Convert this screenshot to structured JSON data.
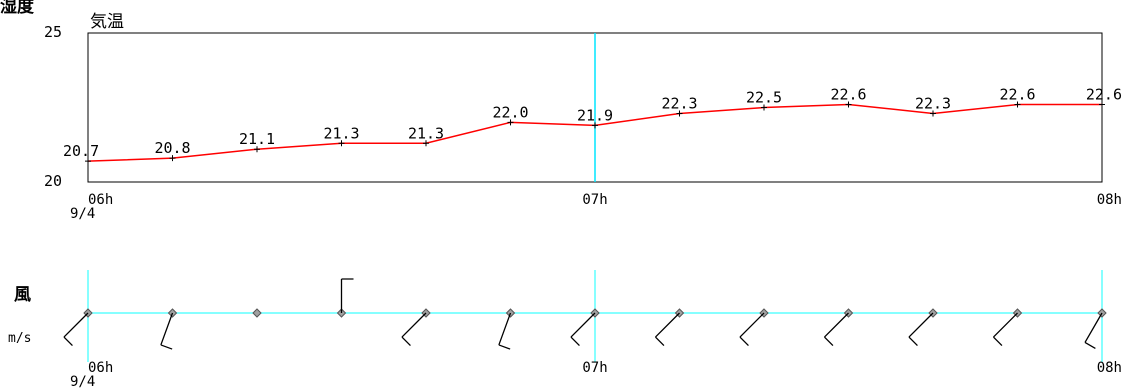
{
  "header": {
    "title_fragment": "湿度",
    "temp_label": "気温",
    "wind_label": "風",
    "wind_unit": "m/s"
  },
  "colors": {
    "temperature_line": "#ff0000",
    "time_marker": "#00e5ff",
    "wind_axis": "#5fffff",
    "axes": "#000000",
    "wind_barb": "#000000"
  },
  "chart_data": [
    {
      "type": "line",
      "title": "気温",
      "ylim": [
        20,
        25
      ],
      "ytick_labels": [
        "25",
        "20"
      ],
      "x_tick_labels": [
        "06h",
        "07h",
        "08h"
      ],
      "x_date_label": "9/4",
      "x": [
        "06:00",
        "06:10",
        "06:20",
        "06:30",
        "06:40",
        "06:50",
        "07:00",
        "07:10",
        "07:20",
        "07:30",
        "07:40",
        "07:50",
        "08:00"
      ],
      "series": [
        {
          "values": [
            20.7,
            20.8,
            21.1,
            21.3,
            21.3,
            22.0,
            21.9,
            22.3,
            22.5,
            22.6,
            22.3,
            22.6,
            22.6
          ],
          "labels": [
            "20.7",
            "20.8",
            "21.1",
            "21.3",
            "21.3",
            "22.0",
            "21.9",
            "22.3",
            "22.5",
            "22.6",
            "22.3",
            "22.6",
            "22.6"
          ]
        }
      ],
      "grid": false
    },
    {
      "type": "wind-barbs",
      "title": "風",
      "unit": "m/s",
      "x_tick_labels": [
        "06h",
        "07h",
        "08h"
      ],
      "x_date_label": "9/4",
      "x": [
        "06:00",
        "06:10",
        "06:20",
        "06:30",
        "06:40",
        "06:50",
        "07:00",
        "07:10",
        "07:20",
        "07:30",
        "07:40",
        "07:50",
        "08:00"
      ],
      "direction_deg": [
        225,
        200,
        null,
        0,
        225,
        200,
        225,
        225,
        225,
        225,
        225,
        225,
        210
      ],
      "barb_count": [
        1,
        1,
        0,
        1,
        1,
        1,
        1,
        1,
        1,
        1,
        1,
        1,
        1
      ],
      "calm": [
        false,
        false,
        true,
        false,
        false,
        false,
        false,
        false,
        false,
        false,
        false,
        false,
        false
      ]
    }
  ]
}
